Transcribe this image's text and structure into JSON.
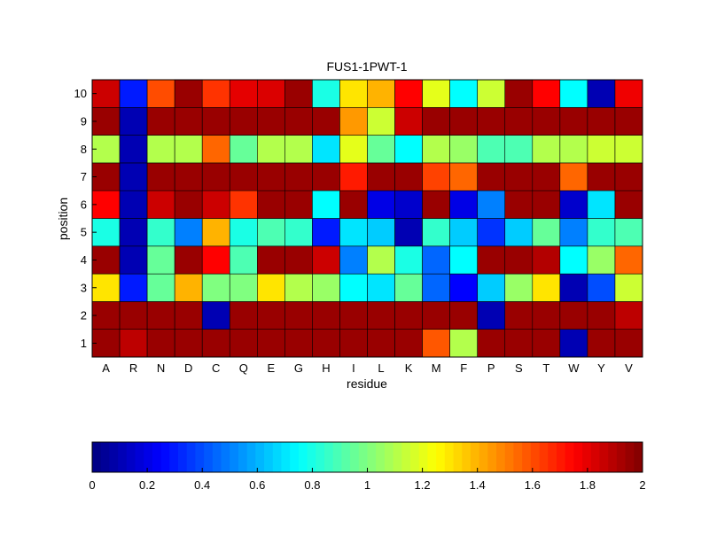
{
  "chart_data": {
    "type": "heatmap",
    "title": "FUS1-1PWT-1",
    "xlabel": "residue",
    "ylabel": "position",
    "x": [
      "A",
      "R",
      "N",
      "D",
      "C",
      "Q",
      "E",
      "G",
      "H",
      "I",
      "L",
      "K",
      "M",
      "F",
      "P",
      "S",
      "T",
      "W",
      "Y",
      "V"
    ],
    "y": [
      1,
      2,
      3,
      4,
      5,
      6,
      7,
      8,
      9,
      10
    ],
    "colormap": "jet",
    "clim": [
      0,
      2
    ],
    "colorbar": {
      "orientation": "horizontal",
      "placement": "bottom",
      "ticks": [
        0,
        0.2,
        0.4,
        0.6,
        0.8,
        1,
        1.2,
        1.4,
        1.6,
        1.8,
        2
      ],
      "tick_labels": [
        "0",
        "0.2",
        "0.4",
        "0.6",
        "0.8",
        "1",
        "1.2",
        "1.4",
        "1.6",
        "1.8",
        "2"
      ]
    },
    "grid": true,
    "values": [
      [
        1.95,
        1.88,
        1.95,
        1.95,
        1.95,
        1.95,
        1.95,
        1.95,
        1.95,
        1.95,
        1.95,
        1.95,
        1.58,
        1.1,
        1.95,
        1.95,
        1.95,
        0.1,
        1.95,
        1.95
      ],
      [
        1.95,
        1.95,
        1.95,
        1.95,
        0.1,
        1.95,
        1.95,
        1.95,
        1.95,
        1.95,
        1.95,
        1.95,
        1.95,
        1.95,
        0.1,
        1.95,
        1.95,
        1.95,
        1.95,
        1.88
      ],
      [
        1.3,
        0.3,
        0.95,
        1.4,
        1.0,
        1.0,
        1.3,
        1.1,
        1.05,
        0.75,
        0.7,
        0.95,
        0.45,
        0.25,
        0.65,
        1.05,
        1.3,
        0.1,
        0.4,
        1.15
      ],
      [
        1.95,
        0.1,
        0.95,
        1.95,
        1.75,
        0.9,
        1.95,
        1.95,
        1.85,
        0.5,
        1.1,
        0.8,
        0.45,
        0.75,
        1.95,
        1.95,
        1.9,
        0.75,
        1.05,
        1.55
      ],
      [
        0.8,
        0.1,
        0.85,
        0.5,
        1.4,
        0.8,
        0.9,
        0.85,
        0.3,
        0.7,
        0.65,
        0.1,
        0.85,
        0.65,
        0.35,
        0.65,
        0.95,
        0.5,
        0.85,
        0.9
      ],
      [
        1.75,
        0.1,
        1.85,
        1.95,
        1.85,
        1.65,
        1.95,
        1.95,
        0.75,
        1.95,
        0.2,
        0.15,
        1.95,
        0.2,
        0.5,
        1.95,
        1.95,
        0.15,
        0.7,
        1.95
      ],
      [
        1.95,
        0.1,
        1.95,
        1.95,
        1.95,
        1.95,
        1.95,
        1.95,
        1.95,
        1.7,
        1.95,
        1.95,
        1.62,
        1.55,
        1.95,
        1.95,
        1.95,
        1.55,
        1.95,
        1.95
      ],
      [
        1.1,
        0.1,
        1.1,
        1.1,
        1.55,
        0.95,
        1.1,
        1.1,
        0.7,
        1.2,
        0.95,
        0.75,
        1.1,
        1.05,
        0.9,
        0.9,
        1.1,
        1.1,
        1.15,
        1.15
      ],
      [
        1.95,
        0.1,
        1.95,
        1.95,
        1.95,
        1.95,
        1.95,
        1.95,
        1.95,
        1.45,
        1.15,
        1.85,
        1.95,
        1.95,
        1.95,
        1.95,
        1.95,
        1.95,
        1.95,
        1.95
      ],
      [
        1.85,
        0.3,
        1.6,
        1.95,
        1.65,
        1.8,
        1.82,
        1.95,
        0.8,
        1.3,
        1.4,
        1.75,
        1.2,
        0.75,
        1.15,
        1.95,
        1.75,
        0.75,
        0.1,
        1.78
      ]
    ]
  }
}
